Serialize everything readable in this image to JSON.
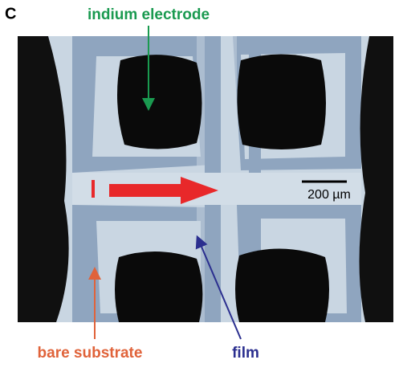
{
  "panel_label": "C",
  "labels": {
    "top": "indium electrode",
    "scale_bar": "200 µm",
    "bottom_left": "bare substrate",
    "bottom_right": "film"
  }
}
